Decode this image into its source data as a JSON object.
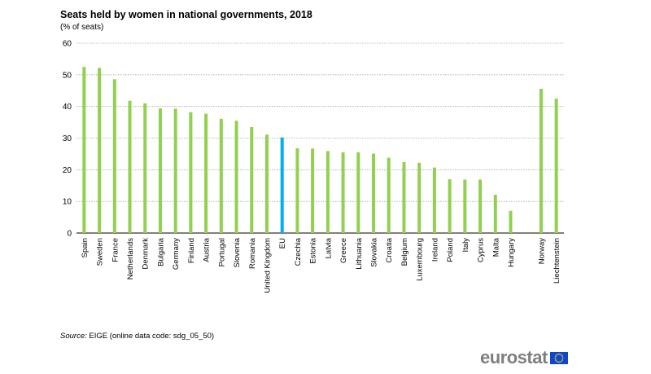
{
  "header": {
    "title": "Seats held by women in national governments, 2018",
    "subtitle": "(% of seats)"
  },
  "source": {
    "label": "Source:",
    "text": " EIGE (online data code: sdg_05_50)"
  },
  "logo": {
    "text": "eurostat",
    "flag_icon": "eu-flag-icon"
  },
  "colors": {
    "bar": "#92d050",
    "highlight": "#00b0f0",
    "grid": "#a6a6a6",
    "axis": "#000000"
  },
  "chart_data": {
    "type": "bar",
    "title": "Seats held by women in national governments, 2018",
    "subtitle": "(% of seats)",
    "xlabel": "",
    "ylabel": "",
    "ylim": [
      0,
      60
    ],
    "yticks": [
      0,
      10,
      20,
      30,
      40,
      50,
      60
    ],
    "grid": true,
    "highlight_category": "EU",
    "categories": [
      "Spain",
      "Sweden",
      "France",
      "Netherlands",
      "Denmark",
      "Bulgaria",
      "Germany",
      "Finland",
      "Austria",
      "Portugal",
      "Slovenia",
      "Romania",
      "United Kingdom",
      "EU",
      "Czechia",
      "Estonia",
      "Latvia",
      "Greece",
      "Lithuania",
      "Slovakia",
      "Croatia",
      "Belgium",
      "Luxembourg",
      "Ireland",
      "Poland",
      "Italy",
      "Cyprus",
      "Malta",
      "Hungary",
      "",
      "Norway",
      "Liechtenstein"
    ],
    "values": [
      52.5,
      52.2,
      48.6,
      41.8,
      41.0,
      39.4,
      39.3,
      38.2,
      37.7,
      36.1,
      35.5,
      33.5,
      31.1,
      30.2,
      26.8,
      26.7,
      25.9,
      25.5,
      25.5,
      25.1,
      23.8,
      22.4,
      22.2,
      20.7,
      17.0,
      16.9,
      16.9,
      12.1,
      7.0,
      null,
      45.6,
      42.5
    ]
  }
}
